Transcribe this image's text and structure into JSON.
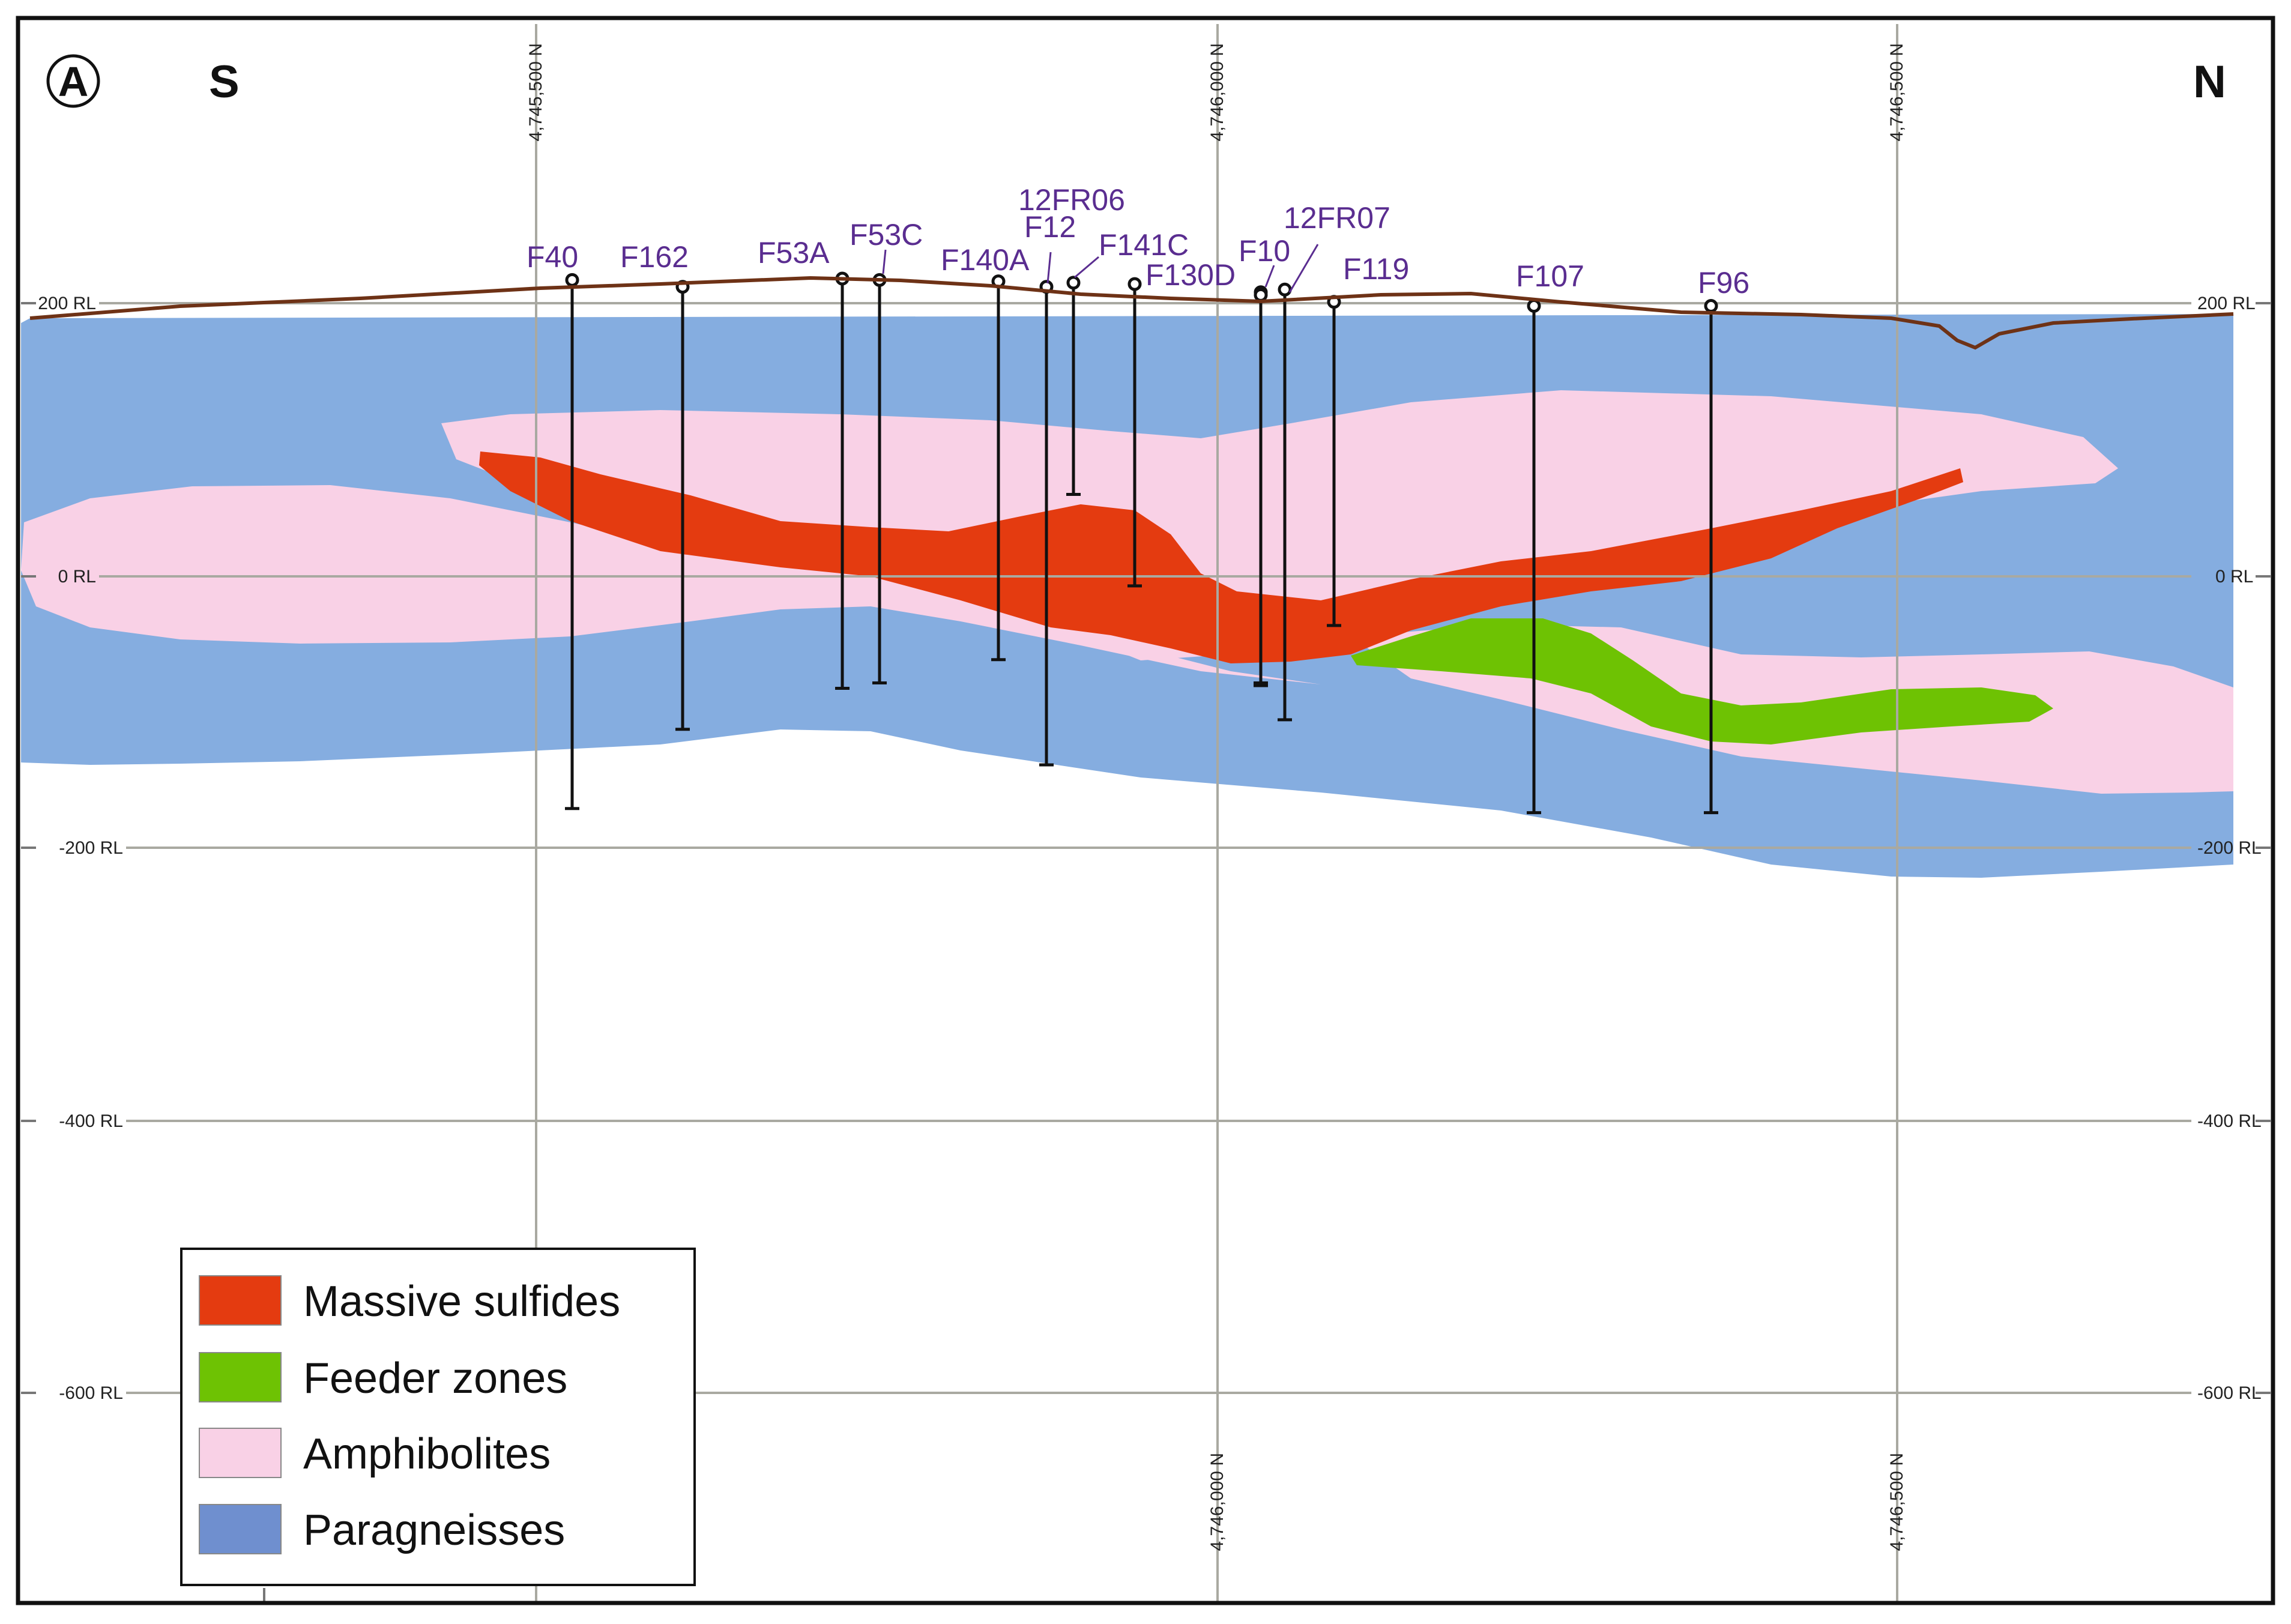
{
  "title_marker": "A",
  "directions": {
    "left": "S",
    "right": "N"
  },
  "colors": {
    "paragneisses": "#85ade0",
    "amphibolites": "#f9d1e6",
    "massive_sulfides": "#e43b10",
    "feeder_zones": "#6ec203",
    "legend_paragneisses": "#6f8fcf",
    "topography": "#6e3216",
    "hole_label": "#5a2d90"
  },
  "elevation_labels": [
    "200 RL",
    "0 RL",
    "-200 RL",
    "-400 RL",
    "-600 RL"
  ],
  "northing_labels": {
    "top": [
      "4,745,500 N",
      "4,746,000 N",
      "4,746,500 N"
    ],
    "bottom": [
      "4,746,000 N",
      "4,746,500 N"
    ]
  },
  "drill_holes": [
    {
      "label": "F40",
      "collar_rl": 217,
      "bottom_rl": -170
    },
    {
      "label": "F162",
      "collar_rl": 212,
      "bottom_rl": -112
    },
    {
      "label": "F53A",
      "collar_rl": 218,
      "bottom_rl": -82
    },
    {
      "label": "F53C",
      "collar_rl": 217,
      "bottom_rl": -78
    },
    {
      "label": "F140A",
      "collar_rl": 216,
      "bottom_rl": -61
    },
    {
      "label": "F12",
      "collar_rl": 212,
      "bottom_rl": -138
    },
    {
      "label": "12FR06",
      "collar_rl": 215,
      "bottom_rl": 60
    },
    {
      "label": "F141C",
      "collar_rl": 214,
      "bottom_rl": -7
    },
    {
      "label": "F130D",
      "collar_rl": 208,
      "bottom_rl": -80
    },
    {
      "label": "F10",
      "collar_rl": 206,
      "bottom_rl": -78
    },
    {
      "label": "12FR07",
      "collar_rl": 210,
      "bottom_rl": -105
    },
    {
      "label": "F119",
      "collar_rl": 201,
      "bottom_rl": -36
    },
    {
      "label": "F107",
      "collar_rl": 198,
      "bottom_rl": -173
    },
    {
      "label": "F96",
      "collar_rl": 198,
      "bottom_rl": -173
    }
  ],
  "legend": [
    {
      "label": "Massive sulfides",
      "color": "#e43b10"
    },
    {
      "label": "Feeder zones",
      "color": "#6ec203"
    },
    {
      "label": "Amphibolites",
      "color": "#f9d1e6"
    },
    {
      "label": "Paragneisses",
      "color": "#6f8fcf"
    }
  ]
}
